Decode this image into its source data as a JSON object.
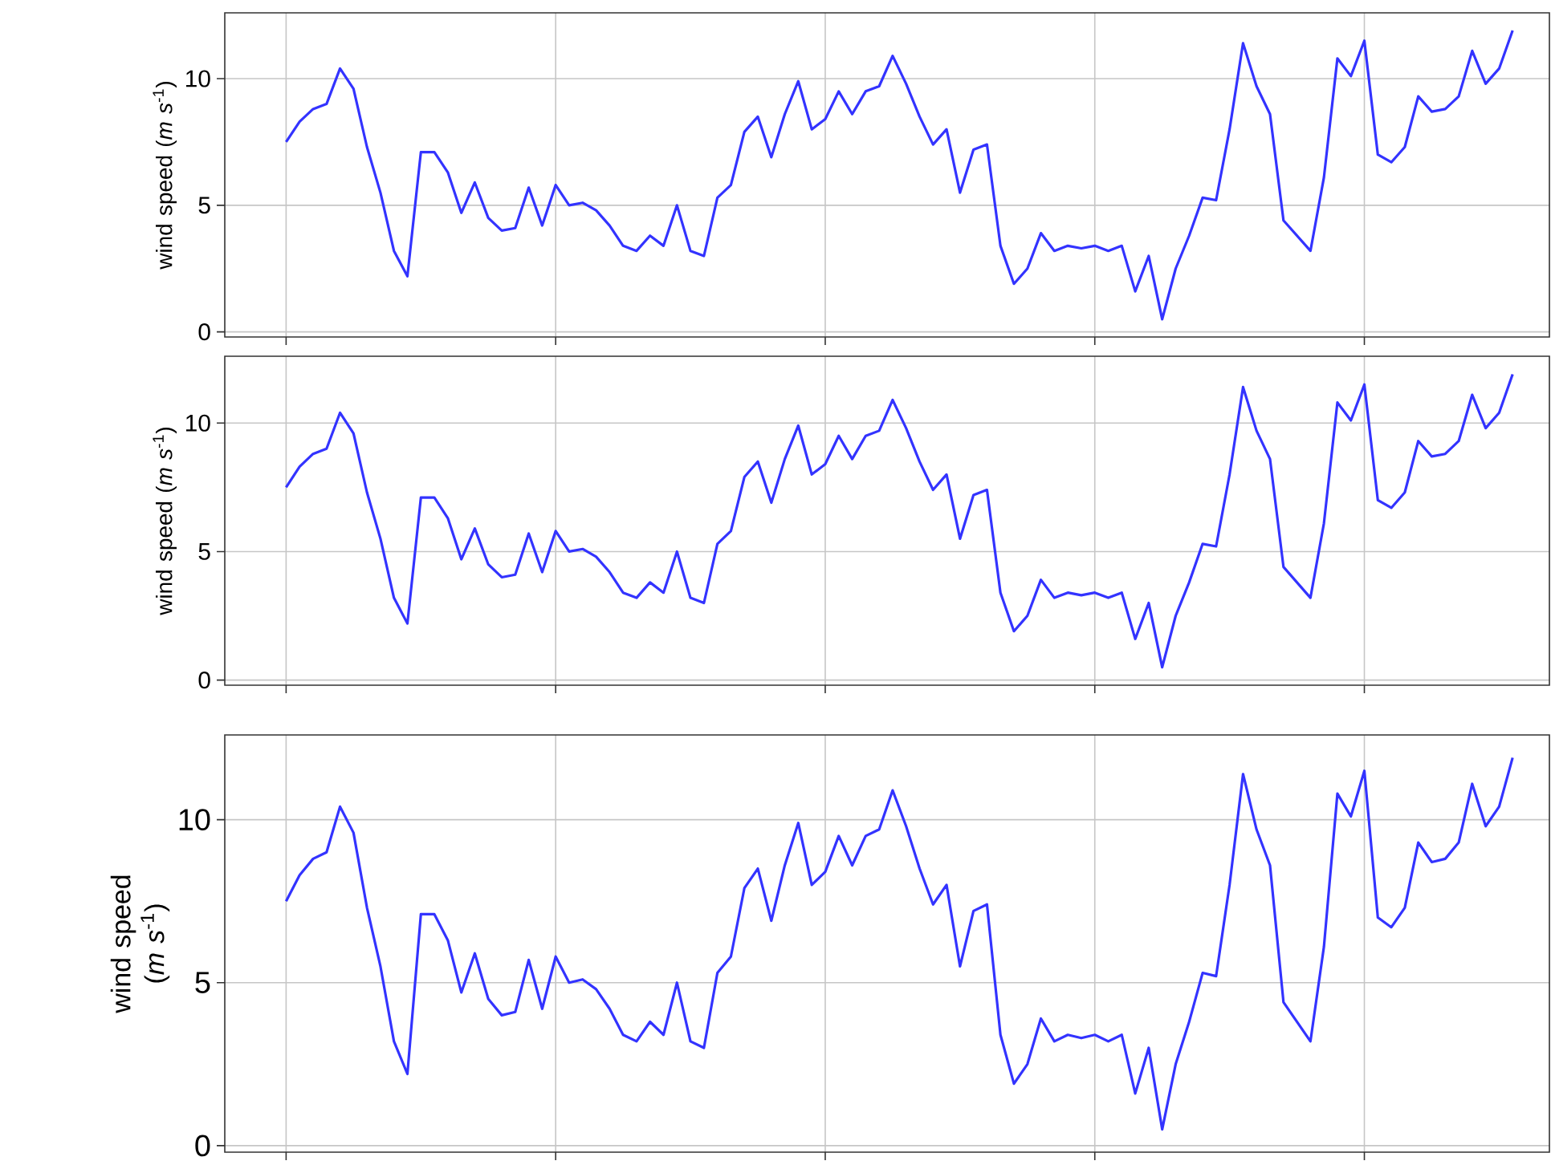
{
  "chart_data": [
    {
      "type": "line",
      "ylabel": "wind speed (*m s*$^{-1}$)",
      "categories": [
        null,
        null,
        null,
        null,
        null,
        null,
        null,
        null,
        null,
        null,
        null,
        null,
        null,
        null,
        null,
        null,
        null,
        null,
        null,
        null,
        null,
        null,
        null,
        null,
        null,
        null,
        null,
        null,
        null,
        null,
        null,
        null,
        null,
        null,
        null,
        null,
        null,
        null,
        null,
        null,
        null,
        null,
        null,
        null,
        null,
        null,
        null,
        null,
        null,
        null,
        null,
        null,
        null,
        null,
        null,
        null,
        null,
        null,
        null,
        null,
        null,
        null,
        null,
        null,
        null,
        null,
        null,
        null,
        null,
        null,
        null,
        null,
        null,
        null,
        null,
        null,
        null,
        null,
        null,
        null,
        null,
        null,
        null,
        null,
        null,
        null,
        null,
        null,
        null,
        null,
        null,
        null
      ],
      "series": [
        {
          "color": "#3333ff",
          "values": [
            7.5,
            8.3,
            8.8,
            9.0,
            10.4,
            9.6,
            7.3,
            5.5,
            3.2,
            2.2,
            7.1,
            7.1,
            6.3,
            4.7,
            5.9,
            4.5,
            4.0,
            4.1,
            5.7,
            4.2,
            5.8,
            5.0,
            5.1,
            4.8,
            4.2,
            3.4,
            3.2,
            3.8,
            3.4,
            5.0,
            3.2,
            3.0,
            5.3,
            5.8,
            7.9,
            8.5,
            6.9,
            8.6,
            9.9,
            8.0,
            8.4,
            9.5,
            8.6,
            9.5,
            9.7,
            10.9,
            9.8,
            8.5,
            7.4,
            8.0,
            5.5,
            7.2,
            7.4,
            3.4,
            1.9,
            2.5,
            3.9,
            3.2,
            3.4,
            3.3,
            3.4,
            3.2,
            3.4,
            1.6,
            3.0,
            0.5,
            2.5,
            3.8,
            5.3,
            5.2,
            8.0,
            11.4,
            9.7,
            8.6,
            4.4,
            3.8,
            3.2,
            6.1,
            10.8,
            10.1,
            11.5,
            7.0,
            6.7,
            7.3,
            9.3,
            8.7,
            8.8,
            9.3,
            11.1,
            9.8,
            10.4,
            11.9
          ]
        }
      ],
      "ylim": [
        -0.2,
        12.6
      ],
      "yticks": [
        0,
        5,
        10
      ],
      "grid": true,
      "tick_labels": "y"
    },
    {
      "type": "line",
      "ylabel": "wind speed (*m s*$^{-1}$)",
      "categories": [
        null,
        null,
        null,
        null,
        null,
        null,
        null,
        null,
        null,
        null,
        null,
        null,
        null,
        null,
        null,
        null,
        null,
        null,
        null,
        null,
        null,
        null,
        null,
        null,
        null,
        null,
        null,
        null,
        null,
        null,
        null,
        null,
        null,
        null,
        null,
        null,
        null,
        null,
        null,
        null,
        null,
        null,
        null,
        null,
        null,
        null,
        null,
        null,
        null,
        null,
        null,
        null,
        null,
        null,
        null,
        null,
        null,
        null,
        null,
        null,
        null,
        null,
        null,
        null,
        null,
        null,
        null,
        null,
        null,
        null,
        null,
        null,
        null,
        null,
        null,
        null,
        null,
        null,
        null,
        null,
        null,
        null,
        null,
        null,
        null,
        null,
        null,
        null,
        null,
        null,
        null,
        null
      ],
      "series": [
        {
          "color": "#3333ff",
          "values": [
            7.5,
            8.3,
            8.8,
            9.0,
            10.4,
            9.6,
            7.3,
            5.5,
            3.2,
            2.2,
            7.1,
            7.1,
            6.3,
            4.7,
            5.9,
            4.5,
            4.0,
            4.1,
            5.7,
            4.2,
            5.8,
            5.0,
            5.1,
            4.8,
            4.2,
            3.4,
            3.2,
            3.8,
            3.4,
            5.0,
            3.2,
            3.0,
            5.3,
            5.8,
            7.9,
            8.5,
            6.9,
            8.6,
            9.9,
            8.0,
            8.4,
            9.5,
            8.6,
            9.5,
            9.7,
            10.9,
            9.8,
            8.5,
            7.4,
            8.0,
            5.5,
            7.2,
            7.4,
            3.4,
            1.9,
            2.5,
            3.9,
            3.2,
            3.4,
            3.3,
            3.4,
            3.2,
            3.4,
            1.6,
            3.0,
            0.5,
            2.5,
            3.8,
            5.3,
            5.2,
            8.0,
            11.4,
            9.7,
            8.6,
            4.4,
            3.8,
            3.2,
            6.1,
            10.8,
            10.1,
            11.5,
            7.0,
            6.7,
            7.3,
            9.3,
            8.7,
            8.8,
            9.3,
            11.1,
            9.8,
            10.4,
            11.9
          ]
        }
      ],
      "ylim": [
        -0.2,
        12.6
      ],
      "yticks": [
        0,
        5,
        10
      ],
      "grid": true,
      "tick_labels": "y"
    },
    {
      "type": "line",
      "ylabel": "wind speed (*m s*$^{-1}$)",
      "categories": [
        null,
        null,
        null,
        null,
        null,
        null,
        null,
        null,
        null,
        null,
        null,
        null,
        null,
        null,
        null,
        null,
        null,
        null,
        null,
        null,
        null,
        null,
        null,
        null,
        null,
        null,
        null,
        null,
        null,
        null,
        null,
        null,
        null,
        null,
        null,
        null,
        null,
        null,
        null,
        null,
        null,
        null,
        null,
        null,
        null,
        null,
        null,
        null,
        null,
        null,
        null,
        null,
        null,
        null,
        null,
        null,
        null,
        null,
        null,
        null,
        null,
        null,
        null,
        null,
        null,
        null,
        null,
        null,
        null,
        null,
        null,
        null,
        null,
        null,
        null,
        null,
        null,
        null,
        null,
        null,
        null,
        null,
        null,
        null,
        null,
        null,
        null,
        null,
        null,
        null,
        null,
        null
      ],
      "series": [
        {
          "color": "#3333ff",
          "values": [
            7.5,
            8.3,
            8.8,
            9.0,
            10.4,
            9.6,
            7.3,
            5.5,
            3.2,
            2.2,
            7.1,
            7.1,
            6.3,
            4.7,
            5.9,
            4.5,
            4.0,
            4.1,
            5.7,
            4.2,
            5.8,
            5.0,
            5.1,
            4.8,
            4.2,
            3.4,
            3.2,
            3.8,
            3.4,
            5.0,
            3.2,
            3.0,
            5.3,
            5.8,
            7.9,
            8.5,
            6.9,
            8.6,
            9.9,
            8.0,
            8.4,
            9.5,
            8.6,
            9.5,
            9.7,
            10.9,
            9.8,
            8.5,
            7.4,
            8.0,
            5.5,
            7.2,
            7.4,
            3.4,
            1.9,
            2.5,
            3.9,
            3.2,
            3.4,
            3.3,
            3.4,
            3.2,
            3.4,
            1.6,
            3.0,
            0.5,
            2.5,
            3.8,
            5.3,
            5.2,
            8.0,
            11.4,
            9.7,
            8.6,
            4.4,
            3.8,
            3.2,
            6.1,
            10.8,
            10.1,
            11.5,
            7.0,
            6.7,
            7.3,
            9.3,
            8.7,
            8.8,
            9.3,
            11.1,
            9.8,
            10.4,
            11.9
          ]
        }
      ],
      "ylim": [
        -0.2,
        12.6
      ],
      "yticks": [
        0,
        5,
        10
      ],
      "grid": true,
      "tick_labels": "y"
    }
  ]
}
